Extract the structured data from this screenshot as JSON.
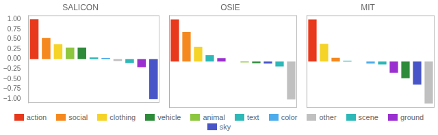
{
  "chart_data": [
    {
      "type": "bar",
      "title": "SALICON",
      "categories": [
        "action",
        "social",
        "clothing",
        "animal",
        "vehicle",
        "text",
        "color",
        "other",
        "scene",
        "ground",
        "sky"
      ],
      "values": [
        1.0,
        0.53,
        0.37,
        0.29,
        0.29,
        0.04,
        0.03,
        -0.05,
        -0.1,
        -0.2,
        -1.0
      ],
      "colors": [
        "#e8391d",
        "#f5891f",
        "#f5d327",
        "#8dc63f",
        "#2e8b3a",
        "#2eb8b8",
        "#4dacec",
        "#c0c0c0",
        "#2eb8b8",
        "#9b30d0",
        "#4855c8"
      ],
      "ylim": [
        -1.1,
        1.1
      ],
      "yticks": [
        {
          "value": -1.0,
          "label": "−1.00"
        },
        {
          "value": -0.75,
          "label": "−0.75"
        },
        {
          "value": -0.5,
          "label": "−0.50"
        },
        {
          "value": -0.25,
          "label": "−0.25"
        },
        {
          "value": 0.0,
          "label": "0.00"
        },
        {
          "value": 0.25,
          "label": "0.25"
        },
        {
          "value": 0.5,
          "label": "0.50"
        },
        {
          "value": 0.75,
          "label": "0.75"
        },
        {
          "value": 1.0,
          "label": "1.00"
        }
      ],
      "grid": false,
      "tick_labels": "y"
    },
    {
      "type": "bar",
      "title": "OSIE",
      "categories": [
        "action",
        "social",
        "clothing",
        "text",
        "ground",
        "color",
        "animal",
        "vehicle",
        "sky",
        "scene",
        "other"
      ],
      "values": [
        1.0,
        0.7,
        0.35,
        0.15,
        0.08,
        0.0,
        -0.02,
        -0.04,
        -0.05,
        -0.12,
        -0.9
      ],
      "colors": [
        "#e8391d",
        "#f5891f",
        "#f5d327",
        "#2eb8b8",
        "#9b30d0",
        "#4dacec",
        "#8dc63f",
        "#2e8b3a",
        "#4855c8",
        "#2eb8b8",
        "#c0c0c0"
      ],
      "ylim": [
        -1.1,
        1.1
      ],
      "yticks": [
        {
          "value": -1.0,
          "label": "−1.00"
        },
        {
          "value": -0.75,
          "label": "−0.75"
        },
        {
          "value": -0.5,
          "label": "−0.50"
        },
        {
          "value": -0.25,
          "label": "−0.25"
        },
        {
          "value": 0.0,
          "label": "0.00"
        },
        {
          "value": 0.25,
          "label": "0.25"
        },
        {
          "value": 0.5,
          "label": "0.50"
        },
        {
          "value": 0.75,
          "label": "0.75"
        },
        {
          "value": 1.0,
          "label": "1.00"
        }
      ],
      "grid": false,
      "tick_labels": false
    },
    {
      "type": "bar",
      "title": "MIT",
      "categories": [
        "action",
        "clothing",
        "social",
        "scene",
        "animal",
        "color",
        "text",
        "ground",
        "vehicle",
        "sky",
        "other"
      ],
      "values": [
        1.0,
        0.42,
        0.09,
        0.02,
        0.0,
        -0.05,
        -0.07,
        -0.27,
        -0.4,
        -0.55,
        -1.0
      ],
      "colors": [
        "#e8391d",
        "#f5d327",
        "#f5891f",
        "#2eb8b8",
        "#8dc63f",
        "#4dacec",
        "#2eb8b8",
        "#9b30d0",
        "#2e8b3a",
        "#4855c8",
        "#c0c0c0"
      ],
      "ylim": [
        -1.1,
        1.1
      ],
      "yticks": [
        {
          "value": -1.0,
          "label": "−1.00"
        },
        {
          "value": -0.75,
          "label": "−0.75"
        },
        {
          "value": -0.5,
          "label": "−0.50"
        },
        {
          "value": -0.25,
          "label": "−0.25"
        },
        {
          "value": 0.0,
          "label": "0.00"
        },
        {
          "value": 0.25,
          "label": "0.25"
        },
        {
          "value": 0.5,
          "label": "0.50"
        },
        {
          "value": 0.75,
          "label": "0.75"
        },
        {
          "value": 1.0,
          "label": "1.00"
        }
      ],
      "grid": false,
      "tick_labels": false
    }
  ],
  "legend": "bottom",
  "legend_entries": [
    {
      "name": "action",
      "color": "#e8391d"
    },
    {
      "name": "social",
      "color": "#f5891f"
    },
    {
      "name": "clothing",
      "color": "#f5d327"
    },
    {
      "name": "vehicle",
      "color": "#2e8b3a"
    },
    {
      "name": "animal",
      "color": "#8dc63f"
    },
    {
      "name": "text",
      "color": "#2eb8b8"
    },
    {
      "name": "color",
      "color": "#4dacec"
    },
    {
      "name": "other",
      "color": "#c0c0c0"
    },
    {
      "name": "scene",
      "color": "#2eb8b8"
    },
    {
      "name": "ground",
      "color": "#9b30d0"
    },
    {
      "name": "sky",
      "color": "#4855c8"
    }
  ]
}
